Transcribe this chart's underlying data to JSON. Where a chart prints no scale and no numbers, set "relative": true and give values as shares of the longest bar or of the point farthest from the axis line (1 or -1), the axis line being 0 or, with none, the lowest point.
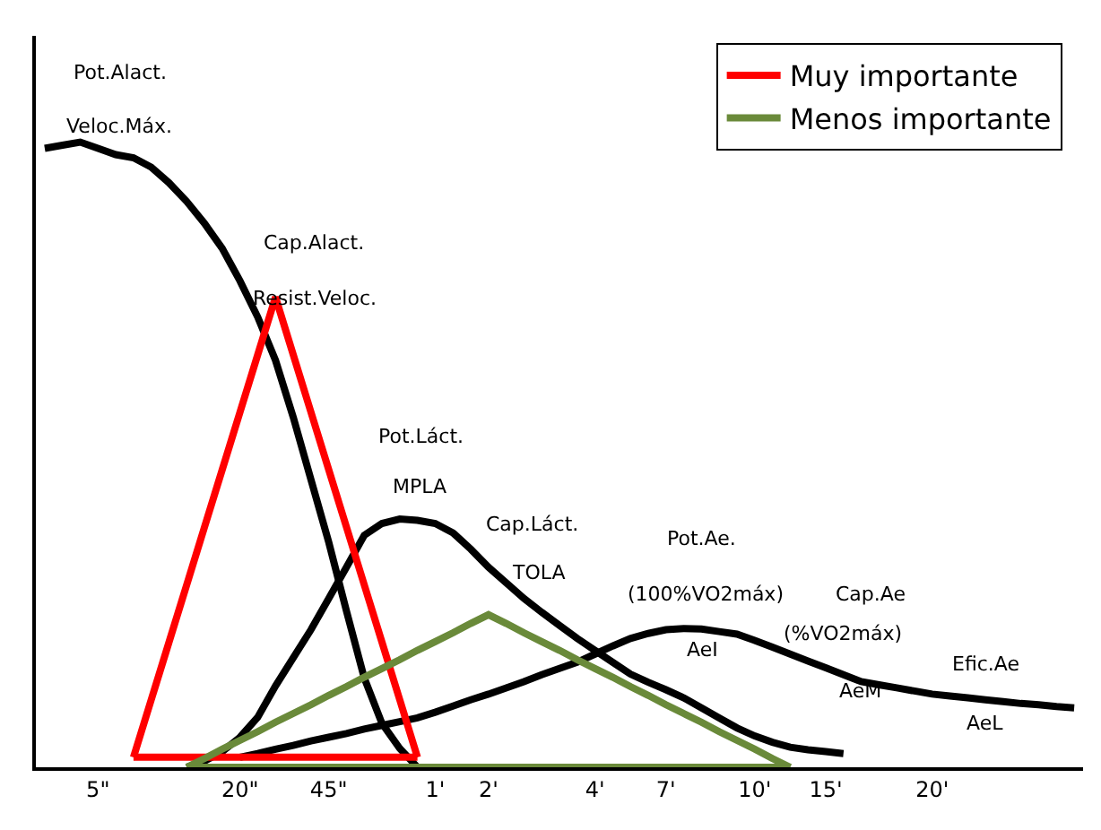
{
  "chart_data": {
    "type": "line",
    "relative": true,
    "categories": [
      null,
      null,
      null,
      "5\"",
      null,
      null,
      null,
      null,
      null,
      null,
      null,
      "20\"",
      null,
      null,
      null,
      null,
      "45\"",
      null,
      null,
      null,
      null,
      null,
      "1'",
      null,
      null,
      "2'",
      null,
      null,
      null,
      null,
      null,
      "4'",
      null,
      null,
      null,
      "7'",
      null,
      null,
      null,
      null,
      "10'",
      null,
      null,
      null,
      "15'",
      null,
      null,
      null,
      null,
      null,
      "20'",
      null,
      null,
      null,
      null,
      null,
      null,
      null,
      null
    ],
    "series": [
      {
        "color": "#000000",
        "values": [
          0.99,
          0.995,
          1.0,
          0.99,
          0.98,
          0.975,
          0.96,
          0.935,
          0.905,
          0.87,
          0.83,
          0.778,
          0.72,
          0.651,
          0.56,
          0.46,
          0.36,
          0.25,
          0.143,
          0.07,
          0.03,
          0,
          null,
          null,
          null,
          null,
          null,
          null,
          null,
          null,
          null,
          null,
          null,
          null,
          null,
          null,
          null,
          null,
          null,
          null,
          null,
          null,
          null,
          null,
          null,
          null,
          null,
          null,
          null,
          null,
          null,
          null,
          null,
          null,
          null,
          null,
          null,
          null,
          null
        ]
      },
      {
        "color": "#000000",
        "values": [
          null,
          null,
          null,
          null,
          null,
          null,
          null,
          null,
          0,
          0.01,
          0.025,
          0.048,
          0.08,
          0.13,
          0.175,
          0.22,
          0.27,
          0.32,
          0.371,
          0.39,
          0.397,
          0.395,
          0.39,
          0.375,
          0.349,
          0.32,
          0.295,
          0.27,
          0.248,
          0.227,
          0.206,
          0.187,
          0.168,
          0.149,
          0.136,
          0.124,
          0.111,
          0.095,
          0.079,
          0.063,
          0.05,
          0.04,
          0.032,
          0.028,
          0.025,
          0.022,
          null,
          null,
          null,
          null,
          null,
          null,
          null,
          null,
          null,
          null,
          null,
          null,
          null
        ]
      },
      {
        "color": "#000000",
        "values": [
          null,
          null,
          null,
          null,
          null,
          null,
          null,
          null,
          null,
          null,
          null,
          0.016,
          0.022,
          0.029,
          0.035,
          0.042,
          0.048,
          0.054,
          0.061,
          0.067,
          0.073,
          0.079,
          0.088,
          0.098,
          0.108,
          0.117,
          0.127,
          0.137,
          0.148,
          0.158,
          0.168,
          0.181,
          0.194,
          0.206,
          0.214,
          0.22,
          0.222,
          0.221,
          0.217,
          0.213,
          0.203,
          0.192,
          0.181,
          0.17,
          0.159,
          0.148,
          0.137,
          0.132,
          0.127,
          0.122,
          0.117,
          0.114,
          0.111,
          0.108,
          0.105,
          0.102,
          0.1,
          0.097,
          0.095
        ]
      },
      {
        "name": "Muy importante",
        "color": "#ff0000",
        "values": [
          null,
          null,
          null,
          null,
          null,
          0.016,
          0.108,
          0.2,
          0.292,
          0.384,
          0.476,
          0.568,
          0.66,
          0.752,
          0.66,
          0.568,
          0.476,
          0.384,
          0.292,
          0.2,
          0.108,
          0.016,
          null,
          null,
          null,
          null,
          null,
          null,
          null,
          null,
          null,
          null,
          null,
          null,
          null,
          null,
          null,
          null,
          null,
          null,
          null,
          null,
          null,
          null,
          null,
          null,
          null,
          null,
          null,
          null,
          null,
          null,
          null,
          null,
          null,
          null,
          null,
          null,
          null
        ]
      },
      {
        "color": "#ff0000",
        "values": [
          null,
          null,
          null,
          null,
          null,
          0.016,
          0.016,
          0.016,
          0.016,
          0.016,
          0.016,
          0.016,
          0.016,
          0.016,
          0.016,
          0.016,
          0.016,
          0.016,
          0.016,
          0.016,
          0.016,
          0.016,
          null,
          null,
          null,
          null,
          null,
          null,
          null,
          null,
          null,
          null,
          null,
          null,
          null,
          null,
          null,
          null,
          null,
          null,
          null,
          null,
          null,
          null,
          null,
          null,
          null,
          null,
          null,
          null,
          null,
          null,
          null,
          null,
          null,
          null,
          null,
          null,
          null
        ]
      },
      {
        "name": "Menos importante",
        "color": "#6a8a3a",
        "values": [
          null,
          null,
          null,
          null,
          null,
          null,
          null,
          null,
          0,
          0.014,
          0.029,
          0.043,
          0.057,
          0.072,
          0.086,
          0.1,
          0.115,
          0.129,
          0.144,
          0.158,
          0.172,
          0.187,
          0.201,
          0.215,
          0.23,
          0.244,
          0.23,
          0.215,
          0.201,
          0.187,
          0.172,
          0.158,
          0.144,
          0.129,
          0.115,
          0.1,
          0.086,
          0.072,
          0.057,
          0.043,
          0.029,
          0.014,
          0,
          null,
          null,
          null,
          null,
          null,
          null,
          null,
          null,
          null,
          null,
          null,
          null,
          null,
          null,
          null,
          null
        ]
      },
      {
        "color": "#6a8a3a",
        "values": [
          null,
          null,
          null,
          null,
          null,
          null,
          null,
          null,
          0,
          0,
          0,
          0,
          0,
          0,
          0,
          0,
          0,
          0,
          0,
          0,
          0,
          0,
          0,
          0,
          0,
          0,
          0,
          0,
          0,
          0,
          0,
          0,
          0,
          0,
          0,
          0,
          0,
          0,
          0,
          0,
          0,
          0,
          0,
          null,
          null,
          null,
          null,
          null,
          null,
          null,
          null,
          null,
          null,
          null,
          null,
          null,
          null,
          null,
          null
        ]
      }
    ],
    "legend": "top right",
    "annotations": [
      "Pot.Alact.",
      "Veloc.Máx.",
      "Cap.Alact.",
      "Resist.Veloc.",
      "Pot.Láct.",
      "MPLA",
      "Cap.Láct.",
      "TOLA",
      "Pot.Ae.",
      "(100%VO2máx)",
      "AeI",
      "Cap.Ae",
      "(%VO2máx)",
      "AeM",
      "Efic.Ae",
      "AeL"
    ]
  }
}
